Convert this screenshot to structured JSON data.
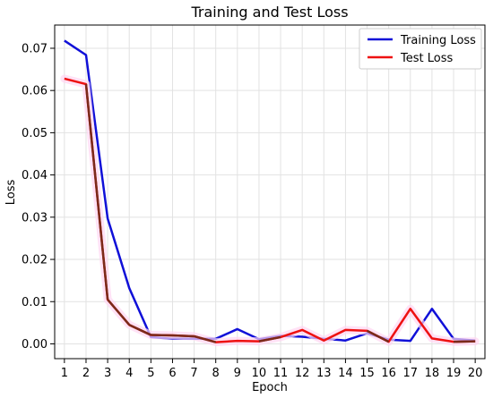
{
  "chart_data": {
    "type": "line",
    "title": "Training and Test Loss",
    "xlabel": "Epoch",
    "ylabel": "Loss",
    "x": [
      1,
      2,
      3,
      4,
      5,
      6,
      7,
      8,
      9,
      10,
      11,
      12,
      13,
      14,
      15,
      16,
      17,
      18,
      19,
      20
    ],
    "x_ticks": [
      "1",
      "2",
      "3",
      "4",
      "5",
      "6",
      "7",
      "8",
      "9",
      "10",
      "11",
      "12",
      "13",
      "14",
      "15",
      "16",
      "17",
      "18",
      "19",
      "20"
    ],
    "y_ticks": [
      "0.00",
      "0.01",
      "0.02",
      "0.03",
      "0.04",
      "0.05",
      "0.06",
      "0.07"
    ],
    "ylim": [
      -0.0035,
      0.0755
    ],
    "xlim": [
      0.55,
      20.45
    ],
    "grid": true,
    "legend_position": "top-right",
    "series": [
      {
        "name": "Training Loss",
        "color": "#1010d8",
        "values": [
          0.0718,
          0.0684,
          0.0297,
          0.0132,
          0.0016,
          0.0012,
          0.0012,
          0.0012,
          0.0035,
          0.0011,
          0.0019,
          0.0017,
          0.0012,
          0.0008,
          0.0025,
          0.001,
          0.0007,
          0.0083,
          0.0012,
          0.0008
        ]
      },
      {
        "name": "Test Loss",
        "color": "#ee1111",
        "values": [
          0.0628,
          0.0615,
          0.0105,
          0.0045,
          0.0021,
          0.002,
          0.0018,
          0.0004,
          0.0007,
          0.0006,
          0.0016,
          0.0033,
          0.0008,
          0.0033,
          0.0031,
          0.0005,
          0.0083,
          0.0013,
          0.0005,
          0.0006
        ]
      }
    ],
    "overlap_color": "#7a2a1a"
  }
}
